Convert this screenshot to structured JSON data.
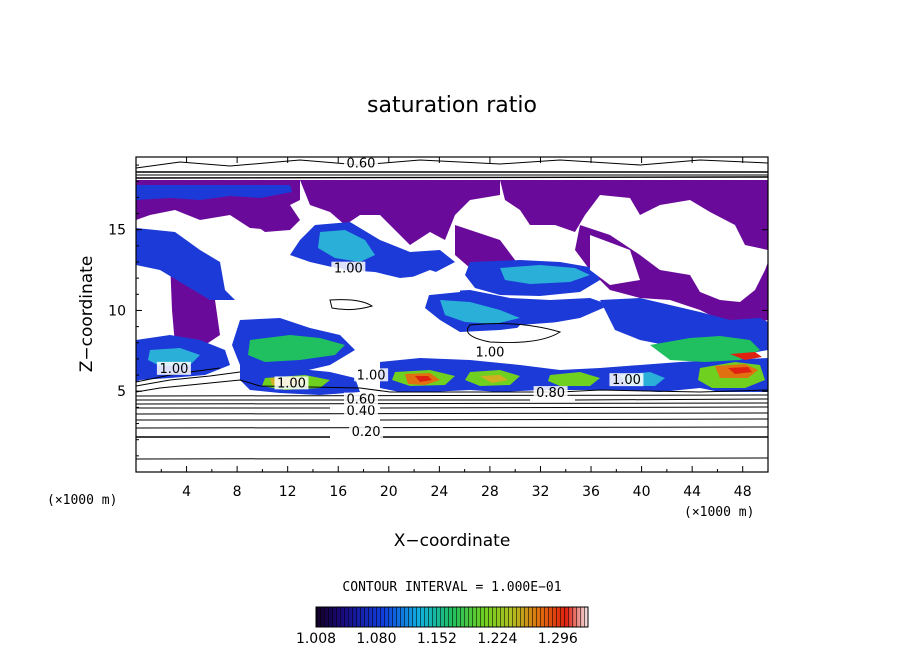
{
  "chart_data": {
    "type": "heatmap",
    "title": "saturation ratio",
    "xlabel": "X−coordinate",
    "ylabel": "Z−coordinate",
    "x_unit_left": "(×1000 m)",
    "x_unit_right": "(×1000 m)",
    "xlim": [
      0,
      50
    ],
    "ylim": [
      0,
      19.5
    ],
    "x_ticks": [
      4,
      8,
      12,
      16,
      20,
      24,
      28,
      32,
      36,
      40,
      44,
      48
    ],
    "y_ticks": [
      5,
      10,
      15
    ],
    "contour_interval_text": "CONTOUR INTERVAL = 1.000E−01",
    "colorbar": {
      "range": [
        1.008,
        1.332
      ],
      "tick_values": [
        1.008,
        1.08,
        1.152,
        1.224,
        1.296
      ],
      "tick_labels": [
        "1.008",
        "1.080",
        "1.152",
        "1.224",
        "1.296"
      ]
    },
    "contour_labels": [
      {
        "text": "0.20",
        "x": 18.2,
        "y": 2.3
      },
      {
        "text": "0.40",
        "x": 17.8,
        "y": 3.6
      },
      {
        "text": "0.60",
        "x": 17.8,
        "y": 4.3
      },
      {
        "text": "0.80",
        "x": 32.8,
        "y": 4.7
      },
      {
        "text": "1.00",
        "x": 3.0,
        "y": 6.2
      },
      {
        "text": "1.00",
        "x": 12.3,
        "y": 5.3
      },
      {
        "text": "1.00",
        "x": 18.6,
        "y": 5.8
      },
      {
        "text": "1.00",
        "x": 28.0,
        "y": 7.2
      },
      {
        "text": "1.00",
        "x": 38.8,
        "y": 5.5
      },
      {
        "text": "1.00",
        "x": 16.8,
        "y": 12.4
      },
      {
        "text": "0.60",
        "x": 17.8,
        "y": 18.9
      }
    ],
    "cloud_regions_note": "purple ~1.01, blue ~1.05-1.09, cyan/green ~1.10-1.18, yellow/red ~1.22-1.33",
    "grid": false
  }
}
